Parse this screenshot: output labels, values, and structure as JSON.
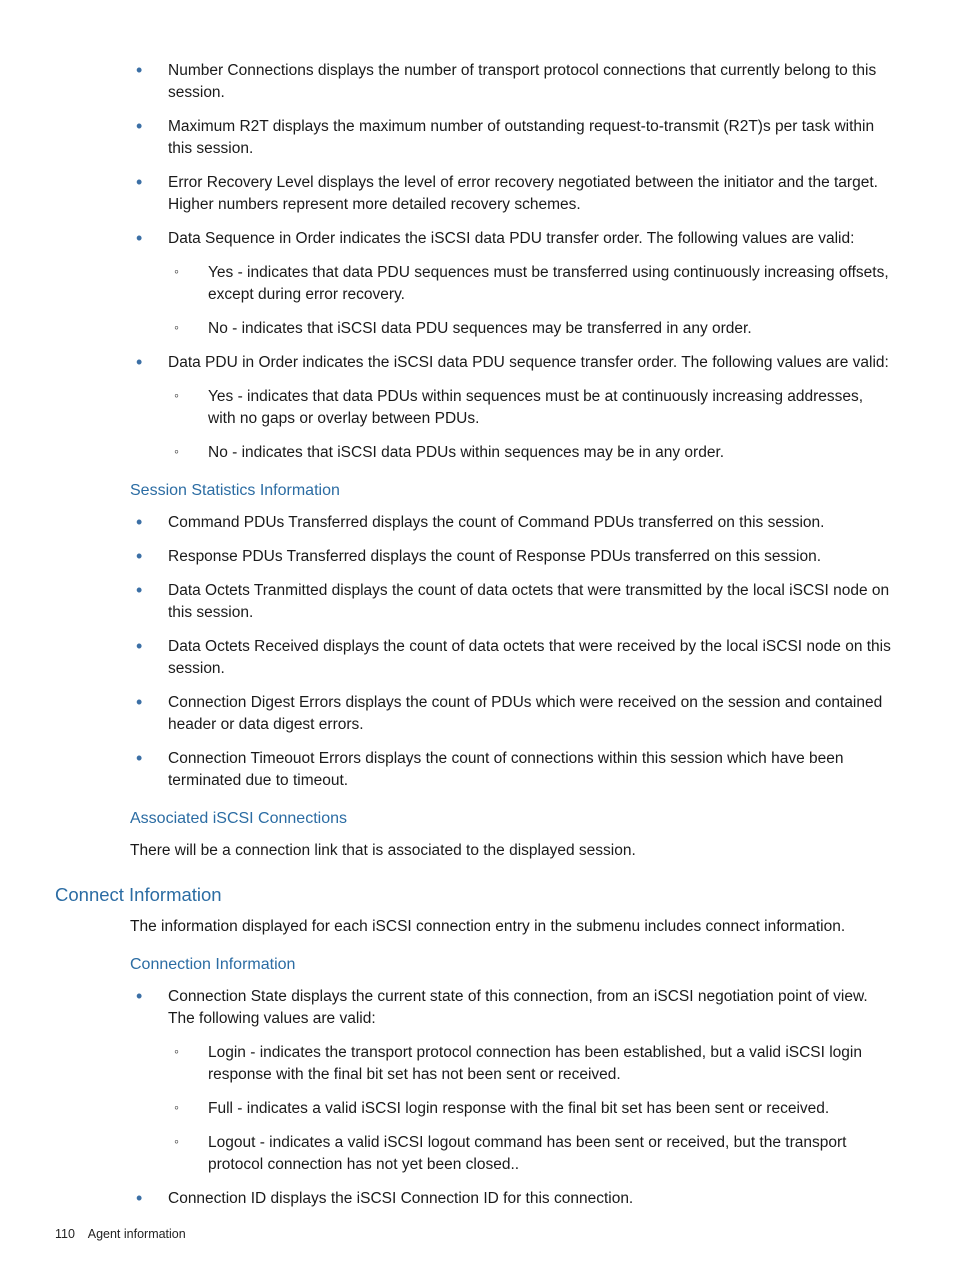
{
  "colors": {
    "heading": "#2b6ca3",
    "bullet": "#3b6fa5",
    "text": "#1a1a1a",
    "background": "#ffffff"
  },
  "typography": {
    "body_fontsize": 15.5,
    "h2_fontsize": 18.5,
    "h3_fontsize": 16,
    "footer_fontsize": 12.5,
    "line_height": 1.42,
    "font_family": "Arial, Helvetica, sans-serif"
  },
  "section1": {
    "items": [
      "Number Connections displays the number of transport protocol connections that currently belong to this session.",
      "Maximum R2T displays the maximum number of outstanding request-to-transmit (R2T)s per task within this session.",
      "Error Recovery Level displays the level of error recovery negotiated between the initiator and the target. Higher numbers represent more detailed recovery schemes.",
      "Data Sequence in Order indicates the iSCSI data PDU transfer order. The following values are valid:",
      "Data PDU in Order indicates the iSCSI data PDU sequence transfer order. The following values are valid:"
    ],
    "sub4": [
      "Yes - indicates that data PDU sequences must be transferred using continuously increasing offsets, except during error recovery.",
      "No - indicates that iSCSI data PDU sequences may be transferred in any order."
    ],
    "sub5": [
      "Yes - indicates that data PDUs within sequences must be at continuously increasing addresses, with no gaps or overlay between PDUs.",
      "No - indicates that iSCSI data PDUs within sequences may be in any order."
    ]
  },
  "section2": {
    "heading": "Session Statistics Information",
    "items": [
      "Command PDUs Transferred displays the count of Command PDUs transferred on this session.",
      "Response PDUs Transferred displays the count of Response PDUs transferred on this session.",
      "Data Octets Tranmitted displays the count of data octets that were transmitted by the local iSCSI node on this session.",
      "Data Octets Received displays the count of data octets that were received by the local iSCSI node on this session.",
      "Connection Digest Errors displays the count of PDUs which were received on the session and contained header or data digest errors.",
      "Connection Timeouot Errors displays the count of connections within this session which have been terminated due to timeout."
    ]
  },
  "section3": {
    "heading": "Associated iSCSI Connections",
    "para": "There will be a connection link that is associated to the displayed session."
  },
  "section4": {
    "heading": "Connect Information",
    "para": "The information displayed for each iSCSI connection entry in the submenu includes connect information."
  },
  "section5": {
    "heading": "Connection Information",
    "items": [
      "Connection State displays the current state of this connection, from an iSCSI negotiation point of view. The following values are valid:",
      "Connection ID displays the iSCSI Connection ID for this connection."
    ],
    "sub1": [
      "Login - indicates the transport protocol connection has been established, but a valid iSCSI login response with the final bit set has not been sent or received.",
      "Full - indicates a valid iSCSI login response with the final bit set has been sent or received.",
      "Logout - indicates a valid iSCSI logout command has been sent or received, but the transport protocol connection has not yet been closed.."
    ]
  },
  "footer": {
    "page_number": "110",
    "section": "Agent information"
  }
}
